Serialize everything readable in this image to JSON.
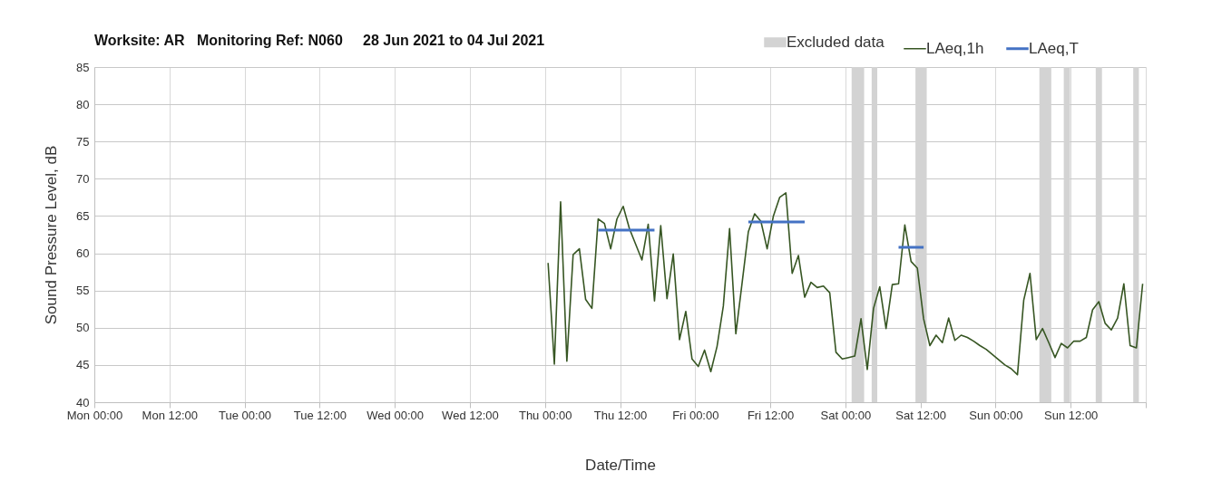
{
  "chart_data": {
    "type": "line",
    "title": "Worksite: AR   Monitoring Ref: N060     28 Jun 2021 to 04 Jul 2021",
    "xlabel": "Date/Time",
    "ylabel": "Sound Pressure Level, dB",
    "xlim": [
      "2021-06-28T00:00",
      "2021-07-05T00:00"
    ],
    "xticks": [
      {
        "value": "2021-06-28T00:00",
        "label": "Mon 00:00"
      },
      {
        "value": "2021-06-28T12:00",
        "label": "Mon 12:00"
      },
      {
        "value": "2021-06-29T00:00",
        "label": "Tue 00:00"
      },
      {
        "value": "2021-06-29T12:00",
        "label": "Tue 12:00"
      },
      {
        "value": "2021-06-30T00:00",
        "label": "Wed 00:00"
      },
      {
        "value": "2021-06-30T12:00",
        "label": "Wed 12:00"
      },
      {
        "value": "2021-07-01T00:00",
        "label": "Thu 00:00"
      },
      {
        "value": "2021-07-01T12:00",
        "label": "Thu 12:00"
      },
      {
        "value": "2021-07-02T00:00",
        "label": "Fri 00:00"
      },
      {
        "value": "2021-07-02T12:00",
        "label": "Fri 12:00"
      },
      {
        "value": "2021-07-03T00:00",
        "label": "Sat 00:00"
      },
      {
        "value": "2021-07-03T12:00",
        "label": "Sat 12:00"
      },
      {
        "value": "2021-07-04T00:00",
        "label": "Sun 00:00"
      },
      {
        "value": "2021-07-04T12:00",
        "label": "Sun 12:00"
      },
      {
        "value": "2021-07-05T00:00",
        "label": null
      }
    ],
    "ylim": [
      40,
      85
    ],
    "yticks": [
      40,
      45,
      50,
      55,
      60,
      65,
      70,
      75,
      80,
      85
    ],
    "grid": true,
    "legend": "top right",
    "series": [
      {
        "name": "LAeq,1h",
        "color": "#375623",
        "x": [
          "2021-07-01T00:30",
          "2021-07-01T01:30",
          "2021-07-01T02:30",
          "2021-07-01T03:30",
          "2021-07-01T04:30",
          "2021-07-01T05:30",
          "2021-07-01T06:30",
          "2021-07-01T07:30",
          "2021-07-01T08:30",
          "2021-07-01T09:30",
          "2021-07-01T10:30",
          "2021-07-01T11:30",
          "2021-07-01T12:30",
          "2021-07-01T13:30",
          "2021-07-01T14:30",
          "2021-07-01T15:30",
          "2021-07-01T16:30",
          "2021-07-01T17:30",
          "2021-07-01T18:30",
          "2021-07-01T19:30",
          "2021-07-01T20:30",
          "2021-07-01T21:30",
          "2021-07-01T22:30",
          "2021-07-01T23:30",
          "2021-07-02T00:30",
          "2021-07-02T01:30",
          "2021-07-02T02:30",
          "2021-07-02T03:30",
          "2021-07-02T04:30",
          "2021-07-02T05:30",
          "2021-07-02T06:30",
          "2021-07-02T07:30",
          "2021-07-02T08:30",
          "2021-07-02T09:30",
          "2021-07-02T10:30",
          "2021-07-02T11:30",
          "2021-07-02T12:30",
          "2021-07-02T13:30",
          "2021-07-02T14:30",
          "2021-07-02T15:30",
          "2021-07-02T16:30",
          "2021-07-02T17:30",
          "2021-07-02T18:30",
          "2021-07-02T19:30",
          "2021-07-02T20:30",
          "2021-07-02T21:30",
          "2021-07-02T22:30",
          "2021-07-02T23:30",
          "2021-07-03T00:30",
          "2021-07-03T01:30",
          "2021-07-03T02:30",
          "2021-07-03T03:30",
          "2021-07-03T04:30",
          "2021-07-03T05:30",
          "2021-07-03T06:30",
          "2021-07-03T07:30",
          "2021-07-03T08:30",
          "2021-07-03T09:30",
          "2021-07-03T10:30",
          "2021-07-03T11:30",
          "2021-07-03T12:30",
          "2021-07-03T13:30",
          "2021-07-03T14:30",
          "2021-07-03T15:30",
          "2021-07-03T16:30",
          "2021-07-03T17:30",
          "2021-07-03T18:30",
          "2021-07-03T19:30",
          "2021-07-03T20:30",
          "2021-07-03T21:30",
          "2021-07-03T22:30",
          "2021-07-03T23:30",
          "2021-07-04T00:30",
          "2021-07-04T01:30",
          "2021-07-04T02:30",
          "2021-07-04T03:30",
          "2021-07-04T04:30",
          "2021-07-04T05:30",
          "2021-07-04T06:30",
          "2021-07-04T07:30",
          "2021-07-04T08:30",
          "2021-07-04T09:30",
          "2021-07-04T10:30",
          "2021-07-04T11:30",
          "2021-07-04T12:30",
          "2021-07-04T13:30",
          "2021-07-04T14:30",
          "2021-07-04T15:30",
          "2021-07-04T16:30",
          "2021-07-04T17:30",
          "2021-07-04T18:30",
          "2021-07-04T19:30",
          "2021-07-04T20:30",
          "2021-07-04T21:30",
          "2021-07-04T22:30",
          "2021-07-04T23:30"
        ],
        "values": [
          58.7,
          45.1,
          66.9,
          45.5,
          59.8,
          60.6,
          53.8,
          52.6,
          64.6,
          64.0,
          60.6,
          64.6,
          66.3,
          63.3,
          61.2,
          59.1,
          63.9,
          53.6,
          63.7,
          53.9,
          59.9,
          48.4,
          52.2,
          45.8,
          44.8,
          47.0,
          44.1,
          47.5,
          52.9,
          63.3,
          49.2,
          56.0,
          62.9,
          65.3,
          64.3,
          60.6,
          65.0,
          67.5,
          68.1,
          57.3,
          59.7,
          54.1,
          56.1,
          55.4,
          55.6,
          54.7,
          46.7,
          45.8,
          46.0,
          46.2,
          51.2,
          44.4,
          52.6,
          55.5,
          49.9,
          55.8,
          55.9,
          63.8,
          58.9,
          58.0,
          51.2,
          47.6,
          49.0,
          48.0,
          51.3,
          48.3,
          49.0,
          48.7,
          48.2,
          47.6,
          47.1,
          46.4,
          45.7,
          45.0,
          44.5,
          43.7,
          53.7,
          57.3,
          48.4,
          49.9,
          48.0,
          46.0,
          47.9,
          47.3,
          48.2,
          48.2,
          48.7,
          52.4,
          53.5,
          50.6,
          49.7,
          51.3,
          55.9,
          47.6,
          47.3,
          55.9
        ]
      },
      {
        "name": "LAeq,T",
        "color": "#4472c4",
        "x": [
          "2021-07-01T08:30",
          "2021-07-01T17:30",
          "2021-07-02T01:00",
          "2021-07-02T08:30",
          "2021-07-02T17:30",
          "2021-07-03T00:00",
          "2021-07-03T08:30",
          "2021-07-03T12:30"
        ],
        "values": [
          63.1,
          63.1,
          null,
          64.2,
          64.2,
          null,
          60.8,
          60.8
        ]
      }
    ],
    "bands": [
      {
        "axis": "x",
        "from": "2021-07-03T01:00",
        "to": "2021-07-03T03:00",
        "label": "Excluded data",
        "color": "#d3d3d3"
      },
      {
        "axis": "x",
        "from": "2021-07-03T04:12",
        "to": "2021-07-03T05:06",
        "color": "#d3d3d3"
      },
      {
        "axis": "x",
        "from": "2021-07-03T11:12",
        "to": "2021-07-03T13:00",
        "color": "#d3d3d3"
      },
      {
        "axis": "x",
        "from": "2021-07-04T07:00",
        "to": "2021-07-04T08:54",
        "color": "#d3d3d3"
      },
      {
        "axis": "x",
        "from": "2021-07-04T10:54",
        "to": "2021-07-04T11:54",
        "color": "#d3d3d3"
      },
      {
        "axis": "x",
        "from": "2021-07-04T16:00",
        "to": "2021-07-04T17:00",
        "color": "#d3d3d3"
      },
      {
        "axis": "x",
        "from": "2021-07-04T22:00",
        "to": "2021-07-04T22:54",
        "color": "#d3d3d3"
      }
    ]
  }
}
